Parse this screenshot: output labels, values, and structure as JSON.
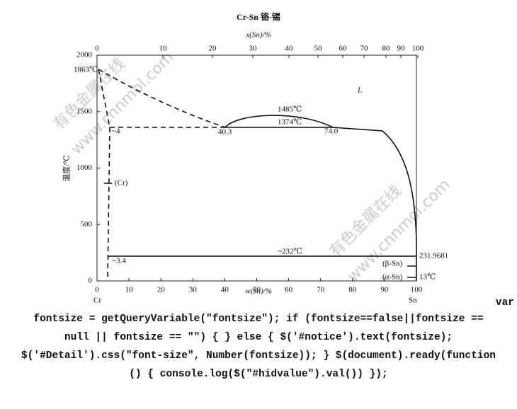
{
  "title": "Cr-Sn   铬-锡",
  "top_axis": {
    "label": "x(Sn)/%",
    "ticks": [
      "0",
      "10",
      "20",
      "30",
      "40",
      "50",
      "60",
      "70",
      "80",
      "90",
      "100"
    ]
  },
  "bottom_axis": {
    "label": "w(Sn)/%",
    "ticks": [
      "0",
      "10",
      "20",
      "30",
      "40",
      "50",
      "60",
      "70",
      "80",
      "90",
      "100"
    ]
  },
  "left_axis": {
    "label": "温度/℃",
    "ticks": [
      "0",
      "500",
      "1000",
      "1500",
      "2000"
    ]
  },
  "annotations": [
    "1863℃",
    "~4",
    "40.3",
    "1485℃",
    "1374℃",
    "74.0",
    "L",
    "(Cr)",
    "~232℃",
    "~3.4",
    "231.9681",
    "(β-Sn)",
    "(α-Sn)",
    "13℃",
    "Cr",
    "Sn"
  ],
  "watermarks": [
    "有色金属在线",
    "www.cnnmol.com",
    "有色金属在线",
    "www.cnnmol.com"
  ],
  "code_lines": [
    "var",
    "fontsize = getQueryVariable(\"fontsize\"); if (fontsize==false||fontsize ==",
    "null || fontsize == \"\") { } else { $('#notice').text(fontsize);",
    "$('#Detail').css(\"font-size\", Number(fontsize)); } $(document).ready(function",
    "() { console.log($(\"#hidvalue\").val()) });"
  ]
}
